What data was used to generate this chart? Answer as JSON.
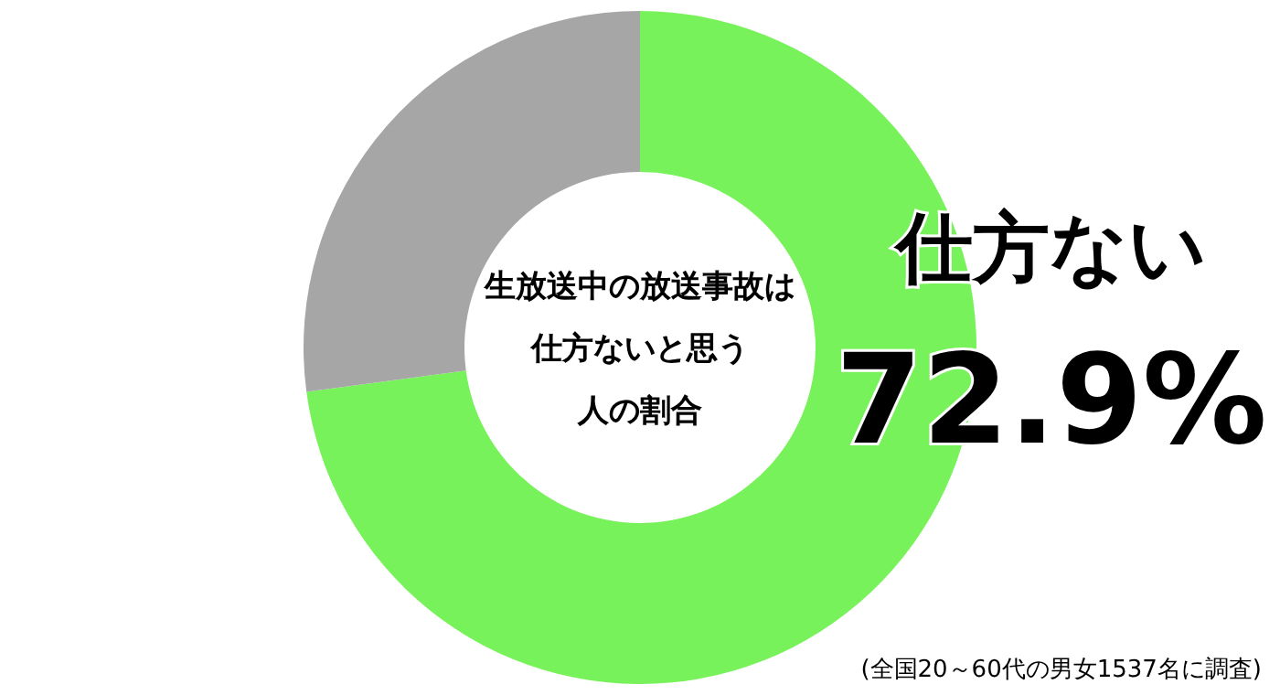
{
  "chart_data": {
    "type": "donut",
    "title": "生放送中の放送事故は仕方ないと思う人の割合",
    "categories": [
      "仕方ない",
      null
    ],
    "values": [
      72.9,
      27.1
    ],
    "colors": [
      "#77f25a",
      "#a6a6a6"
    ],
    "value_labels": [
      "72.9%",
      null
    ],
    "annotations": [
      "(全国20～60代の男女1537名に調査)"
    ]
  }
}
